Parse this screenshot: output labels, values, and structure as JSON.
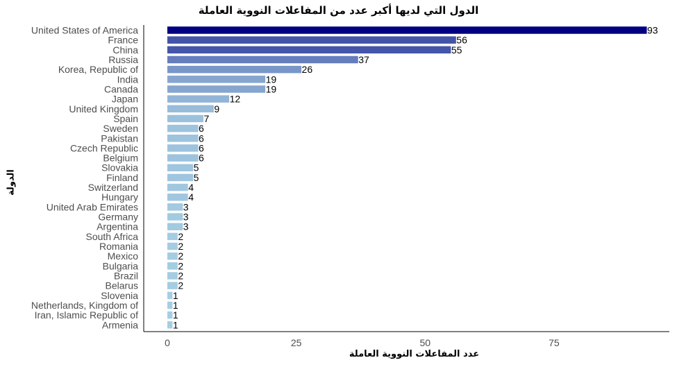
{
  "chart_data": {
    "type": "bar",
    "orientation": "horizontal",
    "title": "الدول التي لديها أكبر عدد من المفاعلات النووية العاملة",
    "xlabel": "عدد المفاعلات النووية العاملة",
    "ylabel": "الدولة",
    "categories": [
      "United States of America",
      "France",
      "China",
      "Russia",
      "Korea, Republic of",
      "India",
      "Canada",
      "Japan",
      "United Kingdom",
      "Spain",
      "Sweden",
      "Pakistan",
      "Czech Republic",
      "Belgium",
      "Slovakia",
      "Finland",
      "Switzerland",
      "Hungary",
      "United Arab Emirates",
      "Germany",
      "Argentina",
      "South Africa",
      "Romania",
      "Mexico",
      "Bulgaria",
      "Brazil",
      "Belarus",
      "Slovenia",
      "Netherlands, Kingdom of",
      "Iran, Islamic Republic of",
      "Armenia"
    ],
    "values": [
      93,
      56,
      55,
      37,
      26,
      19,
      19,
      12,
      9,
      7,
      6,
      6,
      6,
      6,
      5,
      5,
      4,
      4,
      3,
      3,
      3,
      2,
      2,
      2,
      2,
      2,
      2,
      1,
      1,
      1,
      1
    ],
    "xticks": [
      "0",
      "25",
      "50",
      "75"
    ],
    "xlim": [
      0,
      96
    ],
    "grid": false,
    "legend": "none",
    "colors": {
      "low": "#a6cee3",
      "high": "#000080"
    }
  }
}
